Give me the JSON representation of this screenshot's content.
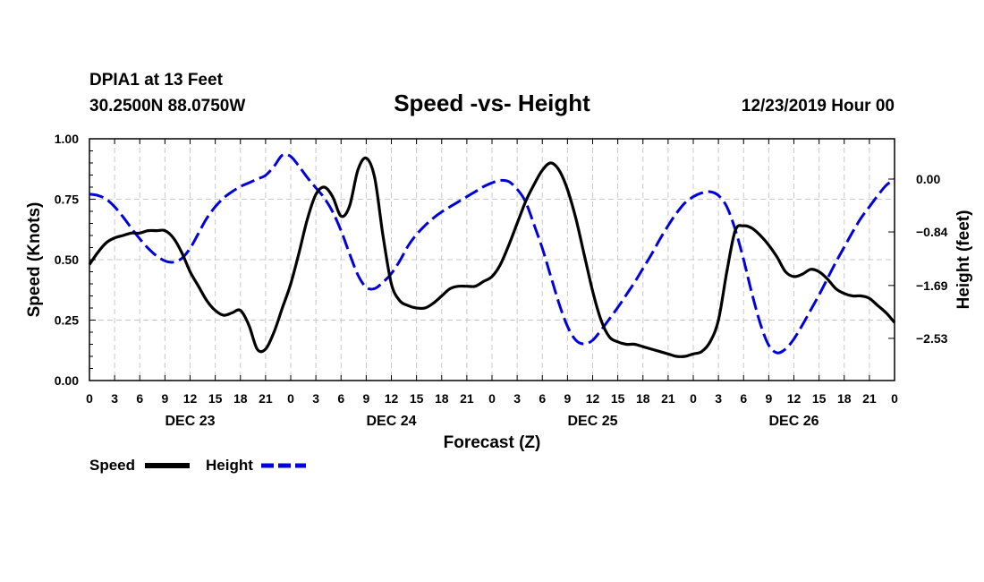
{
  "header": {
    "station": "DPIA1 at 13 Feet",
    "coords": "30.2500N 88.0750W",
    "title": "Speed -vs- Height",
    "datetime": "12/23/2019 Hour 00"
  },
  "chart_data": {
    "type": "line",
    "title": "Speed -vs- Height",
    "xlabel": "Forecast (Z)",
    "ylabel_left": "Speed (Knots)",
    "ylabel_right": "Height (feet)",
    "x_range_hours": [
      0,
      96
    ],
    "x_tick_step_hours": 3,
    "x_tick_labels": [
      "0",
      "3",
      "6",
      "9",
      "12",
      "15",
      "18",
      "21",
      "0",
      "3",
      "6",
      "9",
      "12",
      "15",
      "18",
      "21",
      "0",
      "3",
      "6",
      "9",
      "12",
      "15",
      "18",
      "21",
      "0",
      "3",
      "6",
      "9",
      "12",
      "15",
      "18",
      "21",
      "0"
    ],
    "day_labels": [
      {
        "label": "DEC 23",
        "hour": 12
      },
      {
        "label": "DEC 24",
        "hour": 36
      },
      {
        "label": "DEC 25",
        "hour": 60
      },
      {
        "label": "DEC 26",
        "hour": 84
      }
    ],
    "ylim_left": [
      0,
      1
    ],
    "y_ticks_left": [
      "0.00",
      "0.25",
      "0.50",
      "0.75",
      "1.00"
    ],
    "ylim_right": [
      -3.2,
      0.64
    ],
    "y_ticks_right": [
      {
        "value": -2.53,
        "label": "−2.53"
      },
      {
        "value": -1.69,
        "label": "−1.69"
      },
      {
        "value": -0.84,
        "label": "−0.84"
      },
      {
        "value": 0.0,
        "label": "0.00"
      }
    ],
    "grid": true,
    "series": [
      {
        "name": "Speed",
        "axis": "left",
        "color": "#000000",
        "dash": "solid",
        "x": [
          0,
          1,
          2,
          3,
          4,
          5,
          6,
          7,
          8,
          9,
          10,
          11,
          12,
          13,
          14,
          15,
          16,
          17,
          18,
          19,
          20,
          21,
          22,
          23,
          24,
          25,
          26,
          27,
          28,
          29,
          30,
          31,
          32,
          33,
          34,
          35,
          36,
          37,
          38,
          39,
          40,
          41,
          42,
          43,
          44,
          45,
          46,
          47,
          48,
          49,
          50,
          51,
          52,
          53,
          54,
          55,
          56,
          57,
          58,
          59,
          60,
          61,
          62,
          63,
          64,
          65,
          66,
          67,
          68,
          69,
          70,
          71,
          72,
          73,
          74,
          75,
          76,
          77,
          78,
          79,
          80,
          81,
          82,
          83,
          84,
          85,
          86,
          87,
          88,
          89,
          90,
          91,
          92,
          93,
          94,
          95,
          96
        ],
        "values": [
          0.48,
          0.53,
          0.57,
          0.59,
          0.6,
          0.61,
          0.61,
          0.62,
          0.62,
          0.62,
          0.59,
          0.53,
          0.45,
          0.39,
          0.33,
          0.29,
          0.27,
          0.28,
          0.29,
          0.23,
          0.13,
          0.13,
          0.2,
          0.3,
          0.4,
          0.53,
          0.67,
          0.77,
          0.8,
          0.76,
          0.68,
          0.72,
          0.87,
          0.92,
          0.84,
          0.6,
          0.4,
          0.33,
          0.31,
          0.3,
          0.3,
          0.32,
          0.35,
          0.38,
          0.39,
          0.39,
          0.39,
          0.41,
          0.43,
          0.48,
          0.56,
          0.65,
          0.74,
          0.81,
          0.87,
          0.9,
          0.87,
          0.79,
          0.67,
          0.52,
          0.37,
          0.25,
          0.18,
          0.16,
          0.15,
          0.15,
          0.14,
          0.13,
          0.12,
          0.11,
          0.1,
          0.1,
          0.11,
          0.12,
          0.16,
          0.25,
          0.45,
          0.62,
          0.64,
          0.63,
          0.6,
          0.56,
          0.51,
          0.45,
          0.43,
          0.44,
          0.46,
          0.45,
          0.42,
          0.38,
          0.36,
          0.35,
          0.35,
          0.34,
          0.31,
          0.28,
          0.24
        ]
      },
      {
        "name": "Height",
        "axis": "right",
        "color": "#0000dd",
        "dash": "dashed",
        "x": [
          0,
          1,
          2,
          3,
          4,
          5,
          6,
          7,
          8,
          9,
          10,
          11,
          12,
          13,
          14,
          15,
          16,
          17,
          18,
          19,
          20,
          21,
          22,
          23,
          24,
          25,
          26,
          27,
          28,
          29,
          30,
          31,
          32,
          33,
          34,
          35,
          36,
          37,
          38,
          39,
          40,
          41,
          42,
          43,
          44,
          45,
          46,
          47,
          48,
          49,
          50,
          51,
          52,
          53,
          54,
          55,
          56,
          57,
          58,
          59,
          60,
          61,
          62,
          63,
          64,
          65,
          66,
          67,
          68,
          69,
          70,
          71,
          72,
          73,
          74,
          75,
          76,
          77,
          78,
          79,
          80,
          81,
          82,
          83,
          84,
          85,
          86,
          87,
          88,
          89,
          90,
          91,
          92,
          93,
          94,
          95,
          96
        ],
        "values": [
          -0.24,
          -0.26,
          -0.32,
          -0.44,
          -0.6,
          -0.78,
          -0.95,
          -1.1,
          -1.22,
          -1.3,
          -1.32,
          -1.26,
          -1.1,
          -0.86,
          -0.62,
          -0.44,
          -0.3,
          -0.2,
          -0.12,
          -0.06,
          0.0,
          0.06,
          0.2,
          0.38,
          0.36,
          0.2,
          0.02,
          -0.14,
          -0.3,
          -0.52,
          -0.82,
          -1.18,
          -1.52,
          -1.72,
          -1.74,
          -1.64,
          -1.5,
          -1.3,
          -1.06,
          -0.88,
          -0.74,
          -0.62,
          -0.52,
          -0.44,
          -0.36,
          -0.28,
          -0.2,
          -0.12,
          -0.06,
          -0.02,
          -0.04,
          -0.16,
          -0.36,
          -0.72,
          -1.1,
          -1.54,
          -1.98,
          -2.34,
          -2.56,
          -2.62,
          -2.56,
          -2.4,
          -2.22,
          -2.04,
          -1.84,
          -1.64,
          -1.42,
          -1.2,
          -0.96,
          -0.74,
          -0.54,
          -0.38,
          -0.28,
          -0.22,
          -0.2,
          -0.26,
          -0.44,
          -0.8,
          -1.28,
          -1.82,
          -2.3,
          -2.64,
          -2.76,
          -2.7,
          -2.54,
          -2.32,
          -2.08,
          -1.84,
          -1.58,
          -1.32,
          -1.08,
          -0.84,
          -0.62,
          -0.44,
          -0.26,
          -0.1,
          0.0
        ]
      }
    ],
    "legend_position": "bottom-left"
  }
}
